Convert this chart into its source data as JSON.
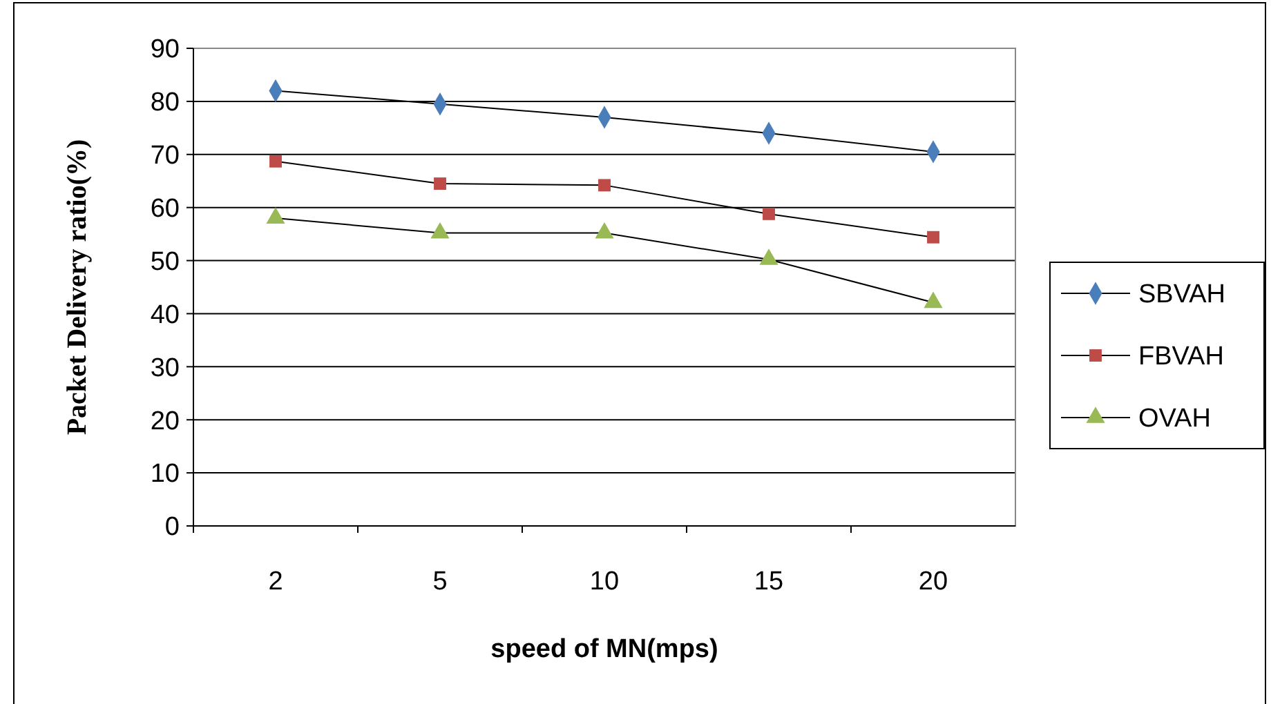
{
  "chart_data": {
    "type": "line",
    "xlabel": "speed of MN(mps)",
    "ylabel": "Packet Delivery ratio(%)",
    "categories": [
      "2",
      "5",
      "10",
      "15",
      "20"
    ],
    "ylim": [
      0,
      90
    ],
    "yticks": [
      0,
      10,
      20,
      30,
      40,
      50,
      60,
      70,
      80,
      90
    ],
    "grid": "y",
    "legend": "right",
    "series": [
      {
        "name": "SBVAH",
        "color": "#4a7ebb",
        "marker": "diamond",
        "values": [
          82,
          79.5,
          77,
          74,
          70.5
        ]
      },
      {
        "name": "FBVAH",
        "color": "#be4b48",
        "marker": "square",
        "values": [
          68.7,
          64.5,
          64.2,
          58.8,
          54.4
        ]
      },
      {
        "name": "OVAH",
        "color": "#98b954",
        "marker": "triangle",
        "values": [
          58,
          55.2,
          55.2,
          50.2,
          42.1
        ]
      }
    ]
  }
}
